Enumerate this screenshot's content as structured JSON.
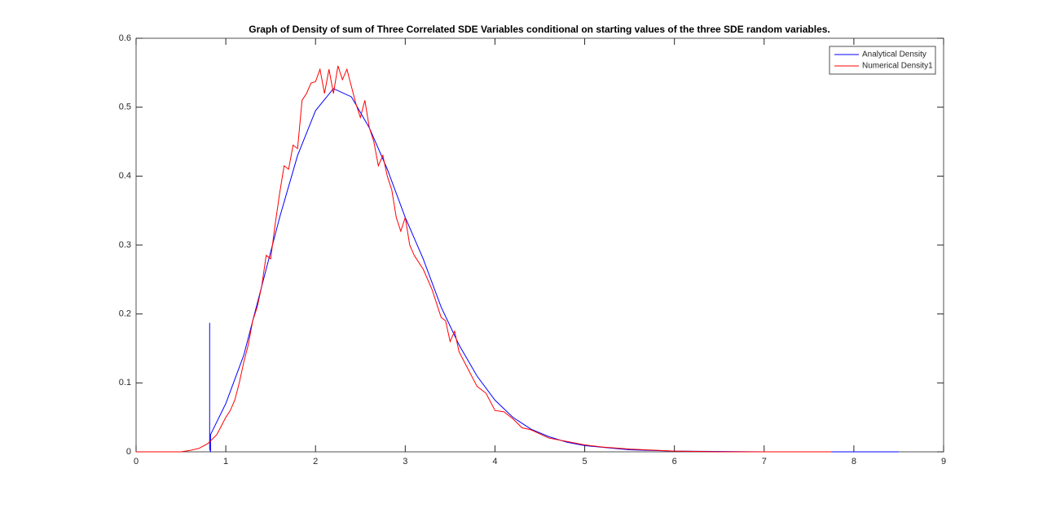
{
  "chart_data": {
    "type": "line",
    "title": "Graph of Density of sum of Three Correlated SDE Variables conditional on starting values of the three SDE random variables.",
    "xlim": [
      0,
      9
    ],
    "xticks": [
      0,
      1,
      2,
      3,
      4,
      5,
      6,
      7,
      8,
      9
    ],
    "ylim": [
      0,
      0.6
    ],
    "yticks": [
      0,
      0.1,
      0.2,
      0.3,
      0.4,
      0.5,
      0.6
    ],
    "grid": false,
    "legend": "upper-right",
    "series": [
      {
        "name": "Analytical Density",
        "color": "#0000ff",
        "x": [
          0.82,
          0.82,
          0.83,
          0.83,
          1.0,
          1.2,
          1.4,
          1.6,
          1.8,
          2.0,
          2.2,
          2.4,
          2.6,
          2.8,
          3.0,
          3.2,
          3.4,
          3.6,
          3.8,
          4.0,
          4.2,
          4.4,
          4.6,
          4.8,
          5.0,
          5.5,
          6.0,
          7.0,
          8.5
        ],
        "values": [
          0.187,
          0.005,
          0.0,
          0.025,
          0.07,
          0.14,
          0.24,
          0.34,
          0.43,
          0.495,
          0.527,
          0.515,
          0.47,
          0.41,
          0.34,
          0.28,
          0.21,
          0.155,
          0.11,
          0.075,
          0.05,
          0.033,
          0.022,
          0.014,
          0.009,
          0.003,
          0.001,
          0,
          0
        ]
      },
      {
        "name": "Numerical Density1",
        "color": "#ff0000",
        "x": [
          0,
          0.5,
          0.6,
          0.7,
          0.8,
          0.9,
          1.0,
          1.05,
          1.1,
          1.15,
          1.2,
          1.25,
          1.3,
          1.35,
          1.4,
          1.45,
          1.5,
          1.55,
          1.6,
          1.65,
          1.7,
          1.75,
          1.8,
          1.85,
          1.9,
          1.95,
          2.0,
          2.05,
          2.1,
          2.15,
          2.2,
          2.25,
          2.3,
          2.35,
          2.4,
          2.45,
          2.5,
          2.55,
          2.6,
          2.65,
          2.7,
          2.75,
          2.8,
          2.85,
          2.9,
          2.95,
          3.0,
          3.05,
          3.1,
          3.2,
          3.3,
          3.4,
          3.45,
          3.5,
          3.55,
          3.6,
          3.7,
          3.8,
          3.9,
          4.0,
          4.1,
          4.2,
          4.3,
          4.4,
          4.6,
          4.8,
          5.0,
          5.2,
          5.5,
          6.0,
          6.5,
          7.75
        ],
        "values": [
          0,
          0,
          0.002,
          0.005,
          0.012,
          0.025,
          0.05,
          0.06,
          0.075,
          0.1,
          0.13,
          0.155,
          0.19,
          0.21,
          0.24,
          0.285,
          0.28,
          0.33,
          0.375,
          0.415,
          0.41,
          0.445,
          0.44,
          0.51,
          0.52,
          0.535,
          0.537,
          0.555,
          0.52,
          0.555,
          0.52,
          0.56,
          0.54,
          0.555,
          0.53,
          0.505,
          0.485,
          0.51,
          0.47,
          0.45,
          0.415,
          0.43,
          0.4,
          0.38,
          0.34,
          0.32,
          0.34,
          0.3,
          0.285,
          0.265,
          0.235,
          0.195,
          0.19,
          0.16,
          0.175,
          0.145,
          0.12,
          0.095,
          0.085,
          0.06,
          0.058,
          0.048,
          0.035,
          0.032,
          0.02,
          0.015,
          0.01,
          0.007,
          0.004,
          0.001,
          0,
          0
        ]
      }
    ]
  }
}
